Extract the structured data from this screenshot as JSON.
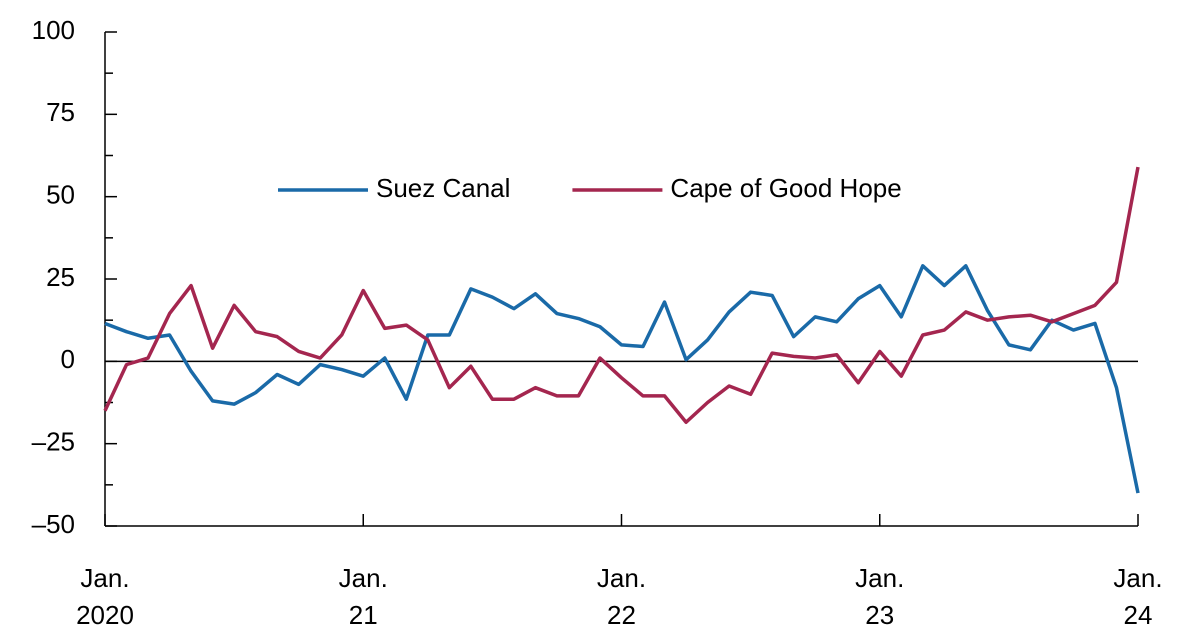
{
  "chart_data": {
    "type": "line",
    "categories": [
      "Jan. 2020",
      null,
      null,
      null,
      null,
      null,
      null,
      null,
      null,
      null,
      null,
      null,
      "Jan. 21",
      null,
      null,
      null,
      null,
      null,
      null,
      null,
      null,
      null,
      null,
      null,
      "Jan. 22",
      null,
      null,
      null,
      null,
      null,
      null,
      null,
      null,
      null,
      null,
      null,
      "Jan. 23",
      null,
      null,
      null,
      null,
      null,
      null,
      null,
      null,
      null,
      null,
      null,
      "Jan. 24"
    ],
    "series": [
      {
        "name": "Suez Canal",
        "color": "#1a6aa8",
        "values": [
          11.5,
          9,
          7,
          8,
          -3,
          -12,
          -13,
          -9.5,
          -4,
          -7,
          -1,
          -2.5,
          -4.5,
          1,
          -11.5,
          8,
          8,
          22,
          19.5,
          16,
          20.5,
          14.5,
          13,
          10.5,
          5,
          4.5,
          18,
          0.5,
          6.5,
          15,
          21,
          20,
          7.5,
          13.5,
          12,
          19,
          23,
          13.5,
          29,
          23,
          29,
          15.5,
          5,
          3.5,
          12.5,
          9.5,
          11.5,
          -8,
          -40
        ]
      },
      {
        "name": "Cape of Good Hope",
        "color": "#a4264f",
        "values": [
          -15,
          -1,
          1,
          14.5,
          23,
          4,
          17,
          9,
          7.5,
          3,
          1,
          8,
          21.5,
          10,
          11,
          6.5,
          -8,
          -1.5,
          -11.5,
          -11.5,
          -8,
          -10.5,
          -10.5,
          1,
          -5,
          -10.5,
          -10.5,
          -18.5,
          -12.5,
          -7.5,
          -10,
          2.5,
          1.5,
          1,
          2,
          -6.5,
          3,
          -4.5,
          8,
          9.5,
          15,
          12.5,
          13.5,
          14,
          12,
          14.5,
          17,
          24,
          59
        ]
      }
    ],
    "ylim": [
      -50,
      100
    ],
    "yticks": [
      {
        "value": -50,
        "label": "–50"
      },
      {
        "value": -25,
        "label": "–25"
      },
      0,
      25,
      50,
      75,
      100
    ],
    "legend": "top",
    "grid": false
  }
}
